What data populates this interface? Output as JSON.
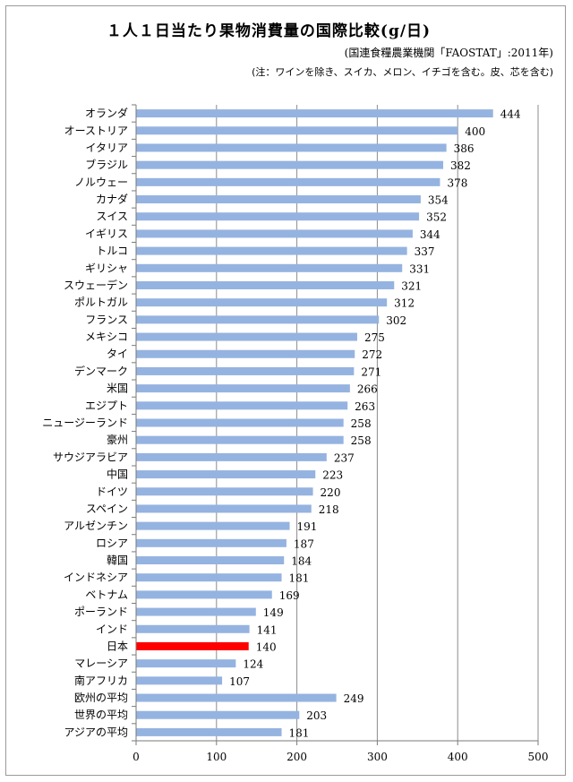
{
  "chart_data": {
    "type": "bar",
    "orientation": "horizontal",
    "title": "１人１日当たり果物消費量の国際比較(g/日)",
    "subtitle": "(国連食糧農業機関「FAOSTAT」:2011年)",
    "note": "(注：ワインを除き、スイカ、メロン、イチゴを含む。皮、芯を含む)",
    "categories": [
      "オランダ",
      "オーストリア",
      "イタリア",
      "ブラジル",
      "ノルウェー",
      "カナダ",
      "スイス",
      "イギリス",
      "トルコ",
      "ギリシャ",
      "スウェーデン",
      "ポルトガル",
      "フランス",
      "メキシコ",
      "タイ",
      "デンマーク",
      "米国",
      "エジプト",
      "ニュージーランド",
      "豪州",
      "サウジアラビア",
      "中国",
      "ドイツ",
      "スペイン",
      "アルゼンチン",
      "ロシア",
      "韓国",
      "インドネシア",
      "ベトナム",
      "ポーランド",
      "インド",
      "日本",
      "マレーシア",
      "南アフリカ",
      "欧州の平均",
      "世界の平均",
      "アジアの平均"
    ],
    "values": [
      444,
      400,
      386,
      382,
      378,
      354,
      352,
      344,
      337,
      331,
      321,
      312,
      302,
      275,
      272,
      271,
      266,
      263,
      258,
      258,
      237,
      223,
      220,
      218,
      191,
      187,
      184,
      181,
      169,
      149,
      141,
      140,
      124,
      107,
      249,
      203,
      181
    ],
    "highlight_category": "日本",
    "xlim": [
      0,
      500
    ],
    "xticks": [
      0,
      100,
      200,
      300,
      400,
      500
    ],
    "grid": "vertical",
    "bar_color": "#95b3e0",
    "highlight_color": "#ff0000"
  }
}
